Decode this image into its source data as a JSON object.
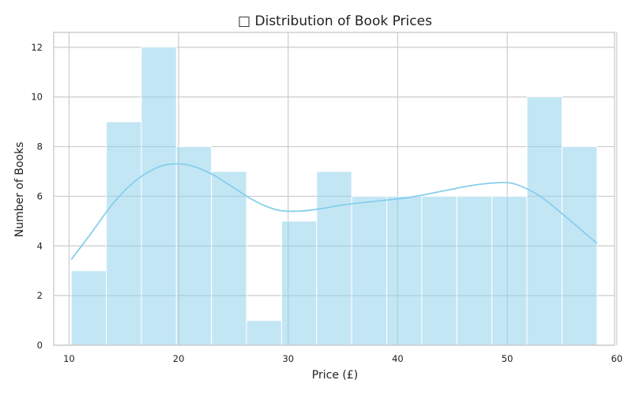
{
  "chart_data": {
    "type": "bar",
    "subtype": "histogram",
    "title": "□ Distribution of Book Prices",
    "xlabel": "Price (£)",
    "ylabel": "Number of Books",
    "xlim": [
      8.6,
      59.8
    ],
    "ylim": [
      0,
      12.6
    ],
    "xticks": [
      10,
      20,
      30,
      40,
      50,
      60
    ],
    "yticks": [
      0,
      2,
      4,
      6,
      8,
      10,
      12
    ],
    "bin_edges": [
      10.2,
      13.4,
      16.6,
      19.8,
      23.0,
      26.2,
      29.4,
      32.6,
      35.8,
      39.0,
      42.2,
      45.4,
      48.6,
      51.8,
      55.0,
      58.2
    ],
    "counts": [
      3,
      9,
      12,
      8,
      7,
      1,
      5,
      7,
      6,
      6,
      6,
      6,
      6,
      10,
      8
    ],
    "kde": {
      "x": [
        10.2,
        12,
        14,
        16,
        18,
        19.5,
        21,
        23,
        25,
        27,
        29,
        31,
        33,
        35,
        38,
        41,
        44,
        47,
        49.5,
        51,
        53,
        55,
        57,
        58.2
      ],
      "y": [
        3.45,
        4.5,
        5.7,
        6.6,
        7.15,
        7.3,
        7.25,
        6.9,
        6.35,
        5.8,
        5.45,
        5.4,
        5.5,
        5.65,
        5.8,
        5.95,
        6.2,
        6.45,
        6.55,
        6.45,
        6.0,
        5.3,
        4.55,
        4.1
      ]
    },
    "grid": true,
    "colors": {
      "bar_fill": "#87ceeb",
      "bar_opacity": 0.5,
      "kde_line": "#87ceeb"
    }
  }
}
